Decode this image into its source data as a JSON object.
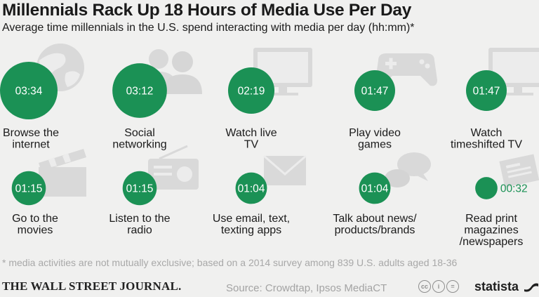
{
  "header": {
    "title": "Millennials Rack Up 18 Hours of Media Use Per Day",
    "subtitle": "Average time millennials in the U.S. spend interacting with media per day (hh:mm)*"
  },
  "chart_data": {
    "type": "bubble",
    "unit": "hh:mm",
    "categories": [
      "Browse the internet",
      "Social networking",
      "Watch live TV",
      "Play video games",
      "Watch timeshifted TV",
      "Go to the movies",
      "Listen to the radio",
      "Use email, text, texting apps",
      "Talk about news/ products/brands",
      "Read print magazines /newspapers"
    ],
    "label_lines": [
      [
        "Browse the",
        "internet"
      ],
      [
        "Social",
        "networking"
      ],
      [
        "Watch live",
        "TV"
      ],
      [
        "Play video",
        "games"
      ],
      [
        "Watch",
        "timeshifted TV"
      ],
      [
        "Go to the",
        "movies"
      ],
      [
        "Listen to the",
        "radio"
      ],
      [
        "Use email, text,",
        "texting apps"
      ],
      [
        "Talk about news/",
        "products/brands"
      ],
      [
        "Read print",
        "magazines",
        "/newspapers"
      ]
    ],
    "values_display": [
      "03:34",
      "03:12",
      "02:19",
      "01:47",
      "01:47",
      "01:15",
      "01:15",
      "01:04",
      "01:04",
      "00:32"
    ],
    "values_minutes": [
      214,
      192,
      139,
      107,
      107,
      75,
      75,
      64,
      64,
      32
    ],
    "icons": [
      "globe-icon",
      "people-icon",
      "tv-icon",
      "gamepad-icon",
      "tv-icon",
      "clapperboard-icon",
      "radio-icon",
      "envelope-icon",
      "speech-bubbles-icon",
      "newspaper-icon"
    ]
  },
  "colors": {
    "bubble": "#1b9155",
    "bubble_text": "#ffffff",
    "icon": "#d9d9d9",
    "background": "#f0f0ef"
  },
  "footnote": "* media activities are not mutually exclusive; based on a 2014 survey among 839 U.S. adults aged 18-36",
  "footer": {
    "publisher": "THE WALL STREET JOURNAL.",
    "source": "Source: Crowdtap, Ipsos MediaCT",
    "license_badges": [
      "cc",
      "i",
      "="
    ],
    "brand": "statista"
  }
}
